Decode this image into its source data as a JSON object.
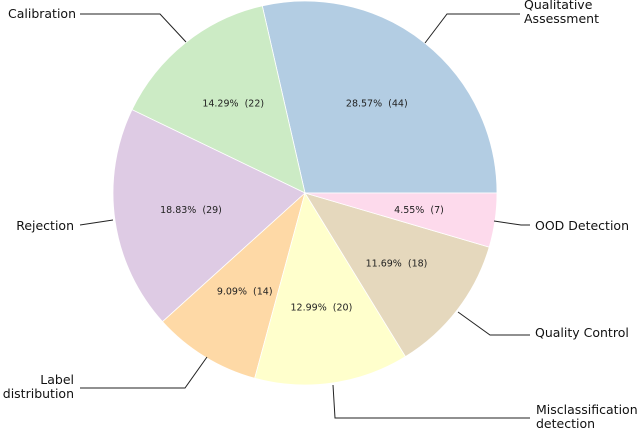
{
  "chart_data": {
    "type": "pie",
    "title": "",
    "start_angle_deg": 0,
    "direction": "counterclockwise",
    "slices": [
      {
        "label": "Qualitative Assessment",
        "count": 44,
        "percent": 28.57,
        "pct_text": "28.57%  (44)",
        "color": "#b3cde3"
      },
      {
        "label": "Calibration",
        "count": 22,
        "percent": 14.29,
        "pct_text": "14.29%  (22)",
        "color": "#ccebc5"
      },
      {
        "label": "Rejection",
        "count": 29,
        "percent": 18.83,
        "pct_text": "18.83%  (29)",
        "color": "#decbe4"
      },
      {
        "label": "Label distribution",
        "count": 14,
        "percent": 9.09,
        "pct_text": "9.09%  (14)",
        "color": "#fed9a6"
      },
      {
        "label": "Misclassification detection",
        "count": 20,
        "percent": 12.99,
        "pct_text": "12.99%  (20)",
        "color": "#ffffcc"
      },
      {
        "label": "Quality Control",
        "count": 18,
        "percent": 11.69,
        "pct_text": "11.69%  (18)",
        "color": "#e5d8bd"
      },
      {
        "label": "OOD Detection",
        "count": 7,
        "percent": 4.55,
        "pct_text": "4.55%  (7)",
        "color": "#fddaec"
      }
    ]
  }
}
